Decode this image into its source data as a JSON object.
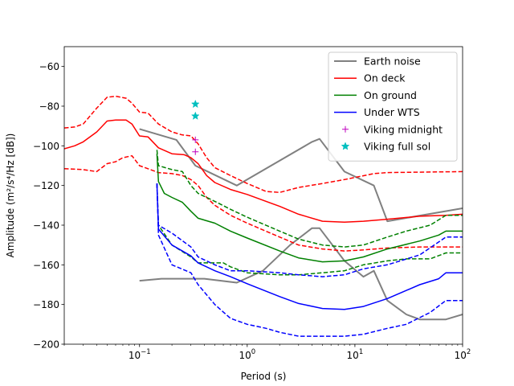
{
  "chart_data": {
    "type": "line",
    "xscale": "log",
    "xlim": [
      0.02,
      100
    ],
    "ylim": [
      -200,
      -50
    ],
    "xlabel": "Period (s)",
    "ylabel": "Amplitude (m²/s⁴/Hz [dB])",
    "xticks": [
      {
        "value": 0.1,
        "base": "10",
        "exp": "−1"
      },
      {
        "value": 1,
        "base": "10",
        "exp": "0"
      },
      {
        "value": 10,
        "base": "10",
        "exp": "1"
      },
      {
        "value": 100,
        "base": "10",
        "exp": "2"
      }
    ],
    "yticks": [
      -200,
      -180,
      -160,
      -140,
      -120,
      -100,
      -80,
      -60
    ],
    "legend_position": "top-right",
    "series": [
      {
        "name": "Earth noise",
        "color": "#808080",
        "style": "solid",
        "width": 2,
        "points": [
          [
            0.1,
            -91.5
          ],
          [
            0.22,
            -97
          ],
          [
            0.33,
            -110
          ],
          [
            0.8,
            -120
          ],
          [
            4,
            -98
          ],
          [
            4.7,
            -96.5
          ],
          [
            8,
            -113
          ],
          [
            15,
            -120
          ],
          [
            20,
            -138
          ],
          [
            100,
            -131.5
          ]
        ]
      },
      {
        "name": "Earth noise",
        "color": "#808080",
        "style": "solid",
        "width": 2,
        "legend": false,
        "points": [
          [
            0.1,
            -168
          ],
          [
            0.16,
            -167
          ],
          [
            0.4,
            -167
          ],
          [
            0.8,
            -169
          ],
          [
            1.4,
            -163
          ],
          [
            2.5,
            -150
          ],
          [
            4,
            -141.5
          ],
          [
            4.7,
            -141.5
          ],
          [
            8,
            -158
          ],
          [
            12,
            -166
          ],
          [
            15,
            -163
          ],
          [
            20,
            -178
          ],
          [
            30,
            -185
          ],
          [
            40,
            -187.5
          ],
          [
            70,
            -187.5
          ],
          [
            100,
            -185
          ]
        ]
      },
      {
        "name": "On deck",
        "color": "#ff0000",
        "style": "solid",
        "width": 1.5,
        "points": [
          [
            0.02,
            -101.5
          ],
          [
            0.025,
            -100
          ],
          [
            0.03,
            -98
          ],
          [
            0.04,
            -93
          ],
          [
            0.05,
            -87.5
          ],
          [
            0.06,
            -87
          ],
          [
            0.075,
            -87
          ],
          [
            0.085,
            -89
          ],
          [
            0.1,
            -95
          ],
          [
            0.12,
            -95.5
          ],
          [
            0.15,
            -101
          ],
          [
            0.2,
            -104
          ],
          [
            0.26,
            -104.5
          ],
          [
            0.3,
            -106
          ],
          [
            0.35,
            -109
          ],
          [
            0.42,
            -115
          ],
          [
            0.5,
            -118.5
          ],
          [
            0.7,
            -122
          ],
          [
            1,
            -124.5
          ],
          [
            2,
            -130.5
          ],
          [
            3,
            -134.5
          ],
          [
            5,
            -138
          ],
          [
            8,
            -138.5
          ],
          [
            12,
            -138
          ],
          [
            20,
            -137
          ],
          [
            40,
            -135.5
          ],
          [
            70,
            -135
          ],
          [
            100,
            -134.5
          ]
        ]
      },
      {
        "name": "On deck",
        "color": "#ff0000",
        "style": "dashed",
        "width": 1.5,
        "legend": false,
        "points": [
          [
            0.02,
            -91
          ],
          [
            0.025,
            -90.5
          ],
          [
            0.03,
            -89
          ],
          [
            0.04,
            -81
          ],
          [
            0.05,
            -75.5
          ],
          [
            0.06,
            -75
          ],
          [
            0.075,
            -76
          ],
          [
            0.085,
            -78.5
          ],
          [
            0.1,
            -83
          ],
          [
            0.12,
            -83.5
          ],
          [
            0.15,
            -89
          ],
          [
            0.2,
            -93
          ],
          [
            0.25,
            -94.5
          ],
          [
            0.3,
            -95
          ],
          [
            0.35,
            -99
          ],
          [
            0.42,
            -106
          ],
          [
            0.5,
            -111
          ],
          [
            0.7,
            -115
          ],
          [
            1,
            -119
          ],
          [
            1.5,
            -123
          ],
          [
            2,
            -123.5
          ],
          [
            3,
            -121
          ],
          [
            5,
            -119
          ],
          [
            8,
            -117
          ],
          [
            15,
            -114
          ],
          [
            20,
            -113.5
          ],
          [
            100,
            -113
          ]
        ]
      },
      {
        "name": "On deck",
        "color": "#ff0000",
        "style": "dashed",
        "width": 1.5,
        "legend": false,
        "points": [
          [
            0.02,
            -111.5
          ],
          [
            0.03,
            -112
          ],
          [
            0.04,
            -113
          ],
          [
            0.05,
            -109
          ],
          [
            0.06,
            -108
          ],
          [
            0.07,
            -106
          ],
          [
            0.085,
            -105
          ],
          [
            0.1,
            -110
          ],
          [
            0.15,
            -113.5
          ],
          [
            0.2,
            -114
          ],
          [
            0.25,
            -115
          ],
          [
            0.3,
            -117
          ],
          [
            0.35,
            -120
          ],
          [
            0.42,
            -126
          ],
          [
            0.5,
            -130
          ],
          [
            0.7,
            -135
          ],
          [
            1,
            -139
          ],
          [
            2,
            -146
          ],
          [
            3,
            -150
          ],
          [
            5,
            -152
          ],
          [
            8,
            -153
          ],
          [
            12,
            -152.5
          ],
          [
            20,
            -151.5
          ],
          [
            40,
            -151
          ],
          [
            100,
            -151
          ]
        ]
      },
      {
        "name": "On ground",
        "color": "#008000",
        "style": "solid",
        "width": 1.5,
        "points": [
          [
            0.145,
            -104
          ],
          [
            0.15,
            -118
          ],
          [
            0.17,
            -124
          ],
          [
            0.2,
            -126
          ],
          [
            0.25,
            -128.5
          ],
          [
            0.3,
            -133
          ],
          [
            0.35,
            -136.5
          ],
          [
            0.5,
            -139
          ],
          [
            0.7,
            -143
          ],
          [
            1,
            -146.5
          ],
          [
            2,
            -153
          ],
          [
            3,
            -156.5
          ],
          [
            5,
            -158.5
          ],
          [
            8,
            -158
          ],
          [
            12,
            -156
          ],
          [
            20,
            -152
          ],
          [
            40,
            -148
          ],
          [
            60,
            -145
          ],
          [
            70,
            -143
          ],
          [
            100,
            -143
          ]
        ]
      },
      {
        "name": "On ground",
        "color": "#008000",
        "style": "dashed",
        "width": 1.5,
        "legend": false,
        "points": [
          [
            0.145,
            -102
          ],
          [
            0.15,
            -110
          ],
          [
            0.2,
            -112
          ],
          [
            0.25,
            -113
          ],
          [
            0.3,
            -120
          ],
          [
            0.35,
            -124
          ],
          [
            0.5,
            -128
          ],
          [
            0.7,
            -132
          ],
          [
            1,
            -136
          ],
          [
            2,
            -143
          ],
          [
            3,
            -147
          ],
          [
            5,
            -150
          ],
          [
            8,
            -151
          ],
          [
            12,
            -150
          ],
          [
            20,
            -146
          ],
          [
            30,
            -143
          ],
          [
            50,
            -140
          ],
          [
            70,
            -135
          ],
          [
            100,
            -135
          ]
        ]
      },
      {
        "name": "On ground",
        "color": "#008000",
        "style": "dashed",
        "width": 1.5,
        "legend": false,
        "points": [
          [
            0.145,
            -119
          ],
          [
            0.15,
            -140
          ],
          [
            0.2,
            -150
          ],
          [
            0.3,
            -156
          ],
          [
            0.35,
            -159
          ],
          [
            0.6,
            -159
          ],
          [
            0.7,
            -161
          ],
          [
            1,
            -164
          ],
          [
            2,
            -165
          ],
          [
            3,
            -165
          ],
          [
            5,
            -164
          ],
          [
            8,
            -163
          ],
          [
            12,
            -160
          ],
          [
            20,
            -158
          ],
          [
            30,
            -157
          ],
          [
            50,
            -157
          ],
          [
            70,
            -154
          ],
          [
            100,
            -154
          ]
        ]
      },
      {
        "name": "Under WTS",
        "color": "#0000ff",
        "style": "solid",
        "width": 1.5,
        "points": [
          [
            0.145,
            -119
          ],
          [
            0.15,
            -142
          ],
          [
            0.2,
            -150
          ],
          [
            0.3,
            -155.5
          ],
          [
            0.35,
            -159
          ],
          [
            0.5,
            -163
          ],
          [
            0.7,
            -166
          ],
          [
            1,
            -169.5
          ],
          [
            2,
            -176
          ],
          [
            3,
            -179.5
          ],
          [
            5,
            -182
          ],
          [
            8,
            -182.5
          ],
          [
            12,
            -181
          ],
          [
            20,
            -177
          ],
          [
            40,
            -170
          ],
          [
            60,
            -167
          ],
          [
            70,
            -164
          ],
          [
            100,
            -164
          ]
        ]
      },
      {
        "name": "Under WTS",
        "color": "#0000ff",
        "style": "dashed",
        "width": 1.5,
        "legend": false,
        "points": [
          [
            0.145,
            -119
          ],
          [
            0.15,
            -140
          ],
          [
            0.2,
            -144
          ],
          [
            0.3,
            -151
          ],
          [
            0.35,
            -156
          ],
          [
            0.5,
            -160
          ],
          [
            0.7,
            -163
          ],
          [
            1,
            -163
          ],
          [
            2,
            -164
          ],
          [
            3,
            -165
          ],
          [
            5,
            -166
          ],
          [
            8,
            -165
          ],
          [
            12,
            -162
          ],
          [
            20,
            -160
          ],
          [
            40,
            -155
          ],
          [
            70,
            -146
          ],
          [
            100,
            -146
          ]
        ]
      },
      {
        "name": "Under WTS",
        "color": "#0000ff",
        "style": "dashed",
        "width": 1.5,
        "legend": false,
        "points": [
          [
            0.145,
            -119
          ],
          [
            0.15,
            -145
          ],
          [
            0.2,
            -160
          ],
          [
            0.3,
            -164
          ],
          [
            0.35,
            -170
          ],
          [
            0.5,
            -180
          ],
          [
            0.7,
            -187
          ],
          [
            1,
            -190
          ],
          [
            1.5,
            -192
          ],
          [
            2,
            -194
          ],
          [
            3,
            -196
          ],
          [
            5,
            -196
          ],
          [
            8,
            -196
          ],
          [
            12,
            -195
          ],
          [
            20,
            -192
          ],
          [
            30,
            -190
          ],
          [
            50,
            -184
          ],
          [
            70,
            -178
          ],
          [
            100,
            -178
          ]
        ]
      }
    ],
    "markers": [
      {
        "name": "Viking midnight",
        "color": "#bf00bf",
        "symbol": "+",
        "points": [
          [
            0.33,
            -97
          ],
          [
            0.33,
            -103
          ]
        ]
      },
      {
        "name": "Viking full sol",
        "color": "#00bfbf",
        "symbol": "star",
        "points": [
          [
            0.33,
            -79
          ],
          [
            0.33,
            -85
          ]
        ]
      }
    ]
  }
}
